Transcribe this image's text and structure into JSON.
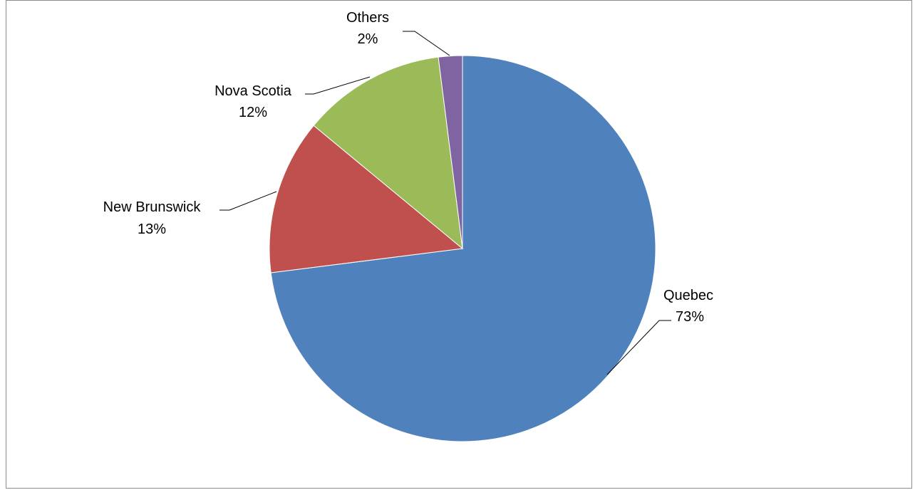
{
  "chart_data": {
    "type": "pie",
    "title": "",
    "slices": [
      {
        "label": "Quebec",
        "value": 73,
        "value_label": "73%",
        "color": "#4F81BD"
      },
      {
        "label": "New Brunswick",
        "value": 13,
        "value_label": "13%",
        "color": "#C0504D"
      },
      {
        "label": "Nova Scotia",
        "value": 12,
        "value_label": "12%",
        "color": "#9BBB59"
      },
      {
        "label": "Others",
        "value": 2,
        "value_label": "2%",
        "color": "#8064A2"
      }
    ],
    "start_angle": "12 o'clock",
    "direction": "clockwise",
    "legend": "none",
    "data_labels": "outside with leader lines"
  }
}
